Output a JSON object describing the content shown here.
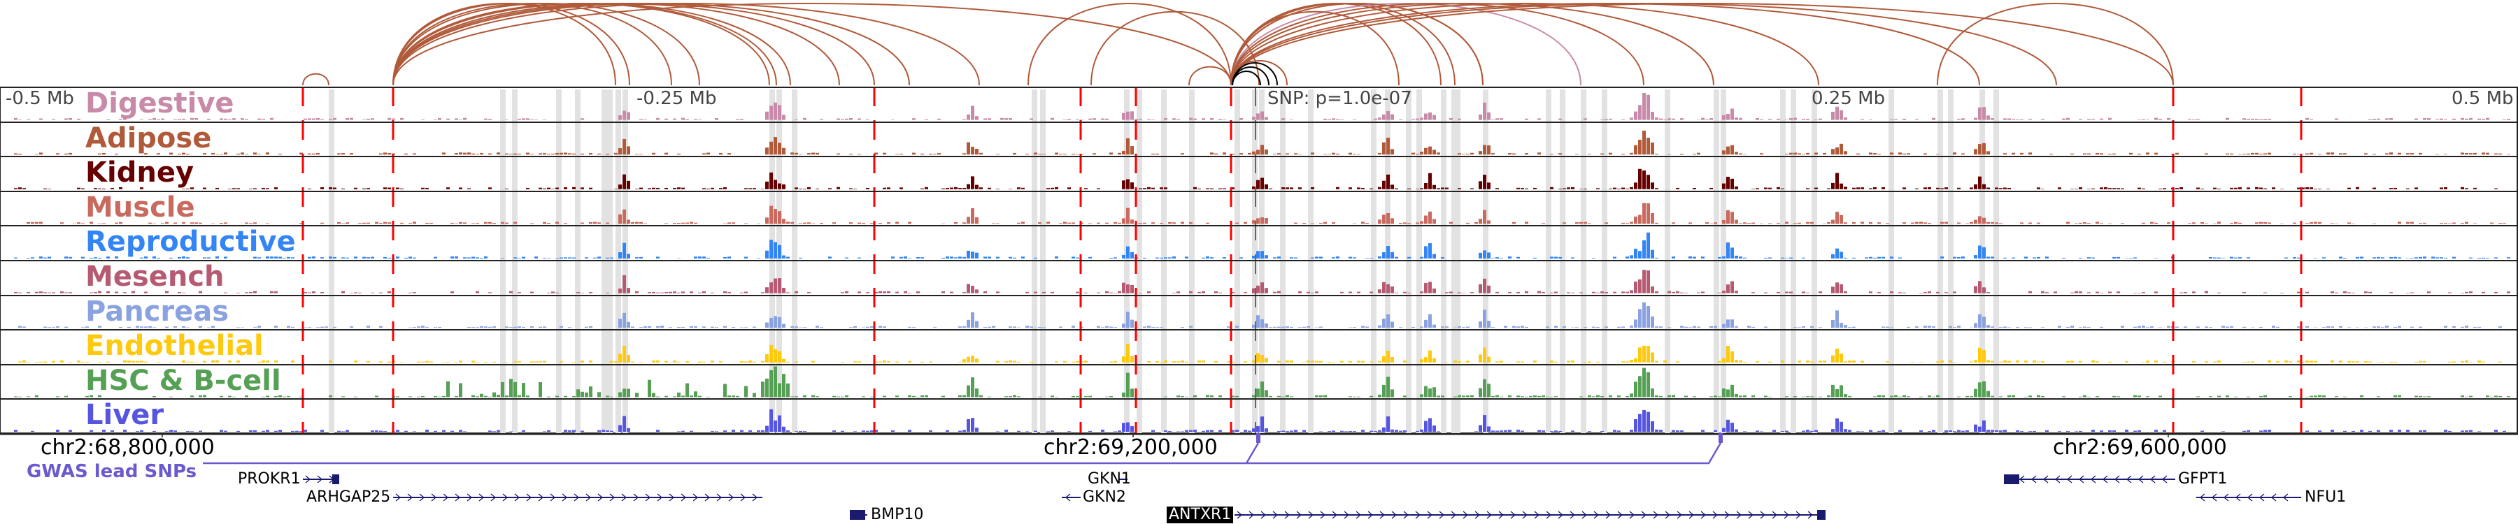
{
  "axis_labels": [
    "-0.5 Mb",
    "-0.25 Mb",
    "0.25 Mb",
    "0.5 Mb"
  ],
  "snp_label": "SNP: p=1.0e-07",
  "tracks": [
    {
      "name": "Digestive",
      "color": "#c88aa8"
    },
    {
      "name": "Adipose",
      "color": "#b05a3a"
    },
    {
      "name": "Kidney",
      "color": "#660000"
    },
    {
      "name": "Muscle",
      "color": "#c86a5e"
    },
    {
      "name": "Reproductive",
      "color": "#3385f5"
    },
    {
      "name": "Mesench",
      "color": "#b55a70"
    },
    {
      "name": "Pancreas",
      "color": "#8aa2e0"
    },
    {
      "name": "Endothelial",
      "color": "#ffc90e"
    },
    {
      "name": "HSC & B-cell",
      "color": "#55a055"
    },
    {
      "name": "Liver",
      "color": "#5555e0"
    }
  ],
  "coordinates": [
    "chr2:68,800,000",
    "chr2:69,200,000",
    "chr2:69,600,000"
  ],
  "gwas_label": "GWAS lead SNPs",
  "genes": [
    "PROKR1",
    "ARHGAP25",
    "BMP10",
    "GKN1",
    "GKN2",
    "ANTXR1",
    "GFPT1",
    "NFU1"
  ],
  "colors": {
    "arc": "#b05a3a",
    "gene": "#1a1a6e",
    "gwas": "#6a5acd",
    "boundary": "#ff0000"
  }
}
